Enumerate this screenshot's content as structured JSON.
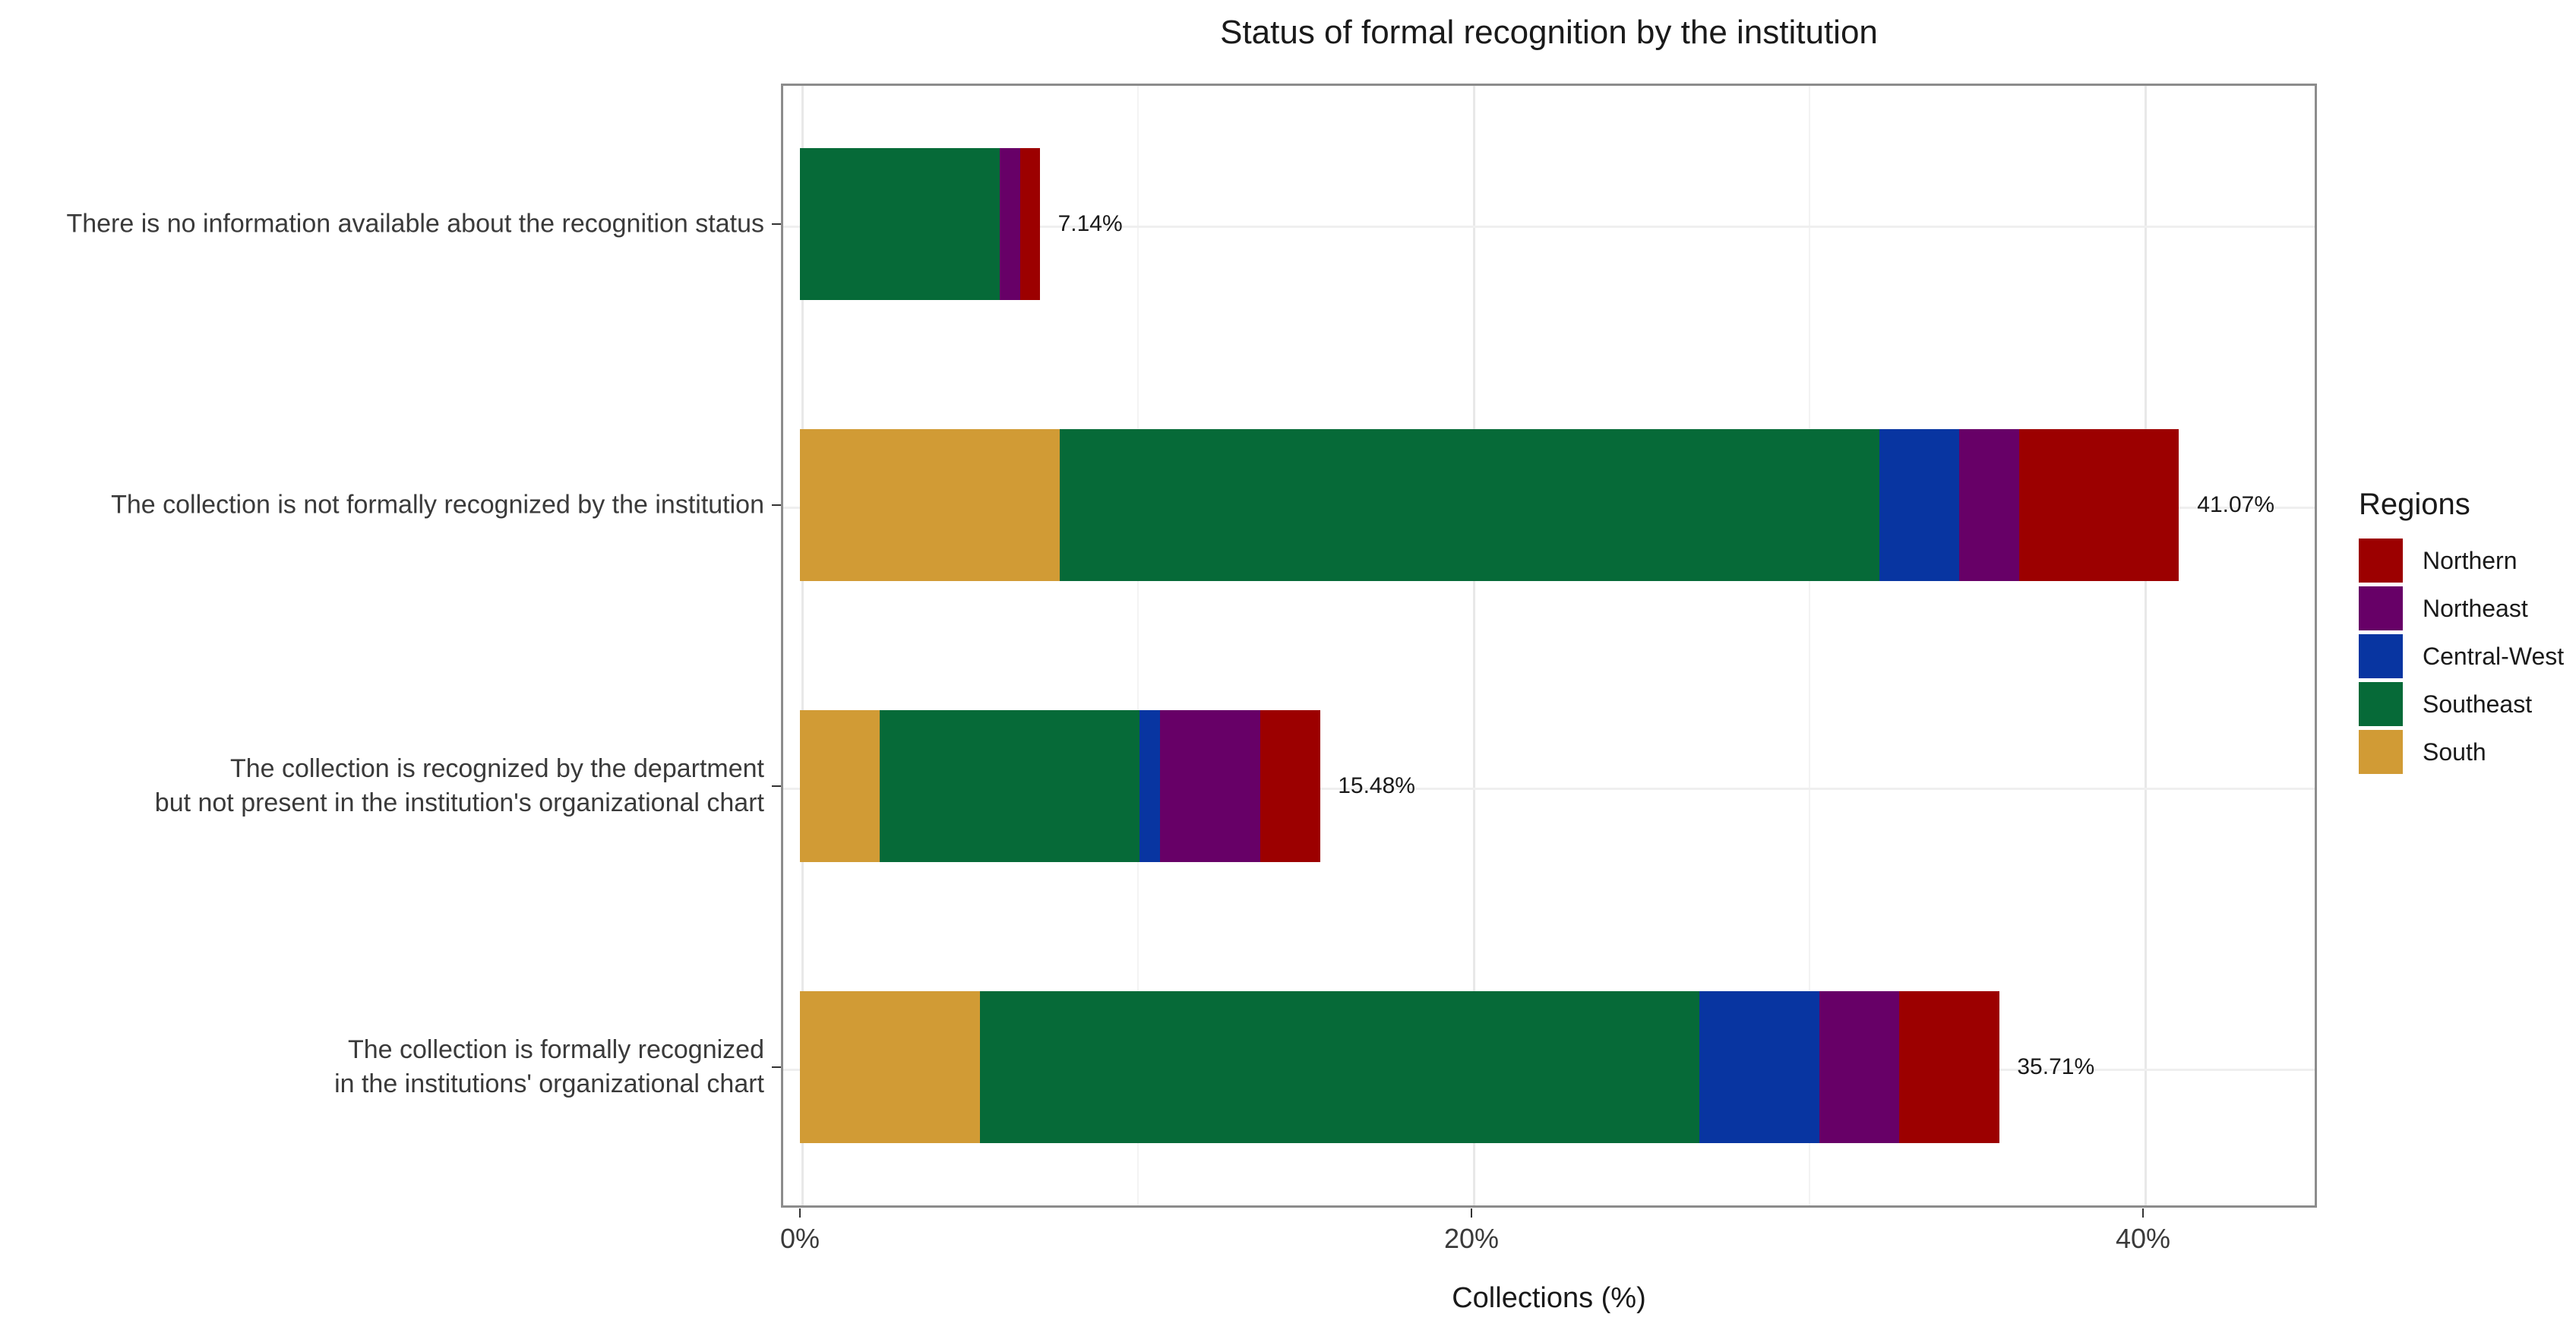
{
  "chart_data": {
    "type": "bar",
    "orientation": "horizontal",
    "stacked": true,
    "title": "Status of formal recognition by the institution",
    "xlabel": "Collections (%)",
    "xlim": [
      0,
      45.5
    ],
    "grid": true,
    "x_ticks": [
      {
        "value": 0,
        "label": "0%"
      },
      {
        "value": 20,
        "label": "20%"
      },
      {
        "value": 40,
        "label": "40%"
      }
    ],
    "x_minor_gridlines": [
      10,
      30
    ],
    "categories": [
      {
        "lines": [
          "There is no information available about the recognition status"
        ],
        "total_value": 7.14,
        "total_label": "7.14%"
      },
      {
        "lines": [
          "The collection is not formally recognized by the institution"
        ],
        "total_value": 41.07,
        "total_label": "41.07%"
      },
      {
        "lines": [
          "The collection is recognized by the department",
          "but not present in the institution's organizational chart"
        ],
        "total_value": 15.48,
        "total_label": "15.48%"
      },
      {
        "lines": [
          "The collection is formally recognized",
          "in the institutions' organizational chart"
        ],
        "total_value": 35.71,
        "total_label": "35.71%"
      }
    ],
    "series": [
      {
        "name": "South",
        "color": "#D19B35",
        "values": [
          0,
          7.74,
          2.38,
          5.36
        ]
      },
      {
        "name": "Southeast",
        "color": "#066A38",
        "values": [
          5.95,
          24.4,
          7.74,
          21.43
        ]
      },
      {
        "name": "Central-West",
        "color": "#0835A1",
        "values": [
          0,
          2.38,
          0.6,
          3.57
        ]
      },
      {
        "name": "Northeast",
        "color": "#670067",
        "values": [
          0.6,
          1.79,
          2.98,
          2.38
        ]
      },
      {
        "name": "Northern",
        "color": "#9C0000",
        "values": [
          0.6,
          4.76,
          1.79,
          2.98
        ]
      }
    ],
    "legend": {
      "title": "Regions",
      "position": "right",
      "items": [
        {
          "label": "Northern",
          "color": "#9C0000"
        },
        {
          "label": "Northeast",
          "color": "#670067"
        },
        {
          "label": "Central-West",
          "color": "#0835A1"
        },
        {
          "label": "Southeast",
          "color": "#066A38"
        },
        {
          "label": "South",
          "color": "#D19B35"
        }
      ]
    }
  }
}
